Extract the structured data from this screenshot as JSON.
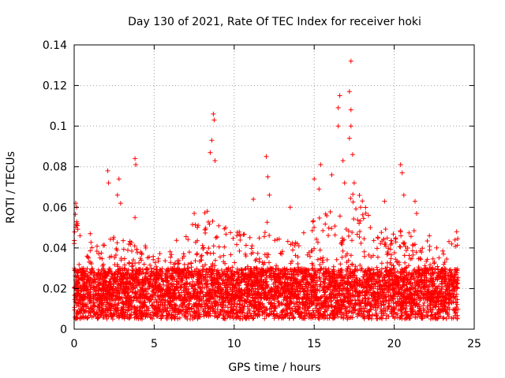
{
  "chart_data": {
    "type": "scatter",
    "title": "Day 130 of 2021, Rate Of TEC Index for receiver hoki",
    "xlabel": "GPS time / hours",
    "ylabel": "ROTI / TECUs",
    "xlim": [
      0,
      25
    ],
    "ylim": [
      0,
      0.14
    ],
    "xticks": [
      0,
      5,
      10,
      15,
      20,
      25
    ],
    "xtick_labels": [
      "0",
      "5",
      "10",
      "15",
      "20",
      "25"
    ],
    "yticks": [
      0,
      0.02,
      0.04,
      0.06,
      0.08,
      0.1,
      0.12,
      0.14
    ],
    "ytick_labels": [
      "0",
      "0.02",
      "0.04",
      "0.06",
      "0.08",
      "0.1",
      "0.12",
      "0.14"
    ],
    "grid": true,
    "marker": "+",
    "series_color": "#ff0000",
    "series": [
      {
        "name": "ROTI",
        "x_range": [
          0,
          24
        ],
        "baseline_range": [
          0.005,
          0.03
        ],
        "notable_points": [
          {
            "x": 0.1,
            "y": 0.062
          },
          {
            "x": 0.15,
            "y": 0.06
          },
          {
            "x": 0.2,
            "y": 0.052
          },
          {
            "x": 1.0,
            "y": 0.047
          },
          {
            "x": 2.1,
            "y": 0.078
          },
          {
            "x": 2.15,
            "y": 0.072
          },
          {
            "x": 2.8,
            "y": 0.074
          },
          {
            "x": 2.7,
            "y": 0.066
          },
          {
            "x": 2.9,
            "y": 0.062
          },
          {
            "x": 3.8,
            "y": 0.084
          },
          {
            "x": 3.85,
            "y": 0.081
          },
          {
            "x": 3.8,
            "y": 0.055
          },
          {
            "x": 7.5,
            "y": 0.057
          },
          {
            "x": 8.5,
            "y": 0.087
          },
          {
            "x": 8.7,
            "y": 0.106
          },
          {
            "x": 8.75,
            "y": 0.103
          },
          {
            "x": 8.6,
            "y": 0.093
          },
          {
            "x": 8.8,
            "y": 0.083
          },
          {
            "x": 11.2,
            "y": 0.064
          },
          {
            "x": 12.0,
            "y": 0.085
          },
          {
            "x": 12.1,
            "y": 0.075
          },
          {
            "x": 12.2,
            "y": 0.066
          },
          {
            "x": 13.5,
            "y": 0.06
          },
          {
            "x": 15.0,
            "y": 0.074
          },
          {
            "x": 15.4,
            "y": 0.081
          },
          {
            "x": 15.3,
            "y": 0.069
          },
          {
            "x": 16.1,
            "y": 0.076
          },
          {
            "x": 16.5,
            "y": 0.109
          },
          {
            "x": 16.6,
            "y": 0.115
          },
          {
            "x": 16.5,
            "y": 0.1
          },
          {
            "x": 16.8,
            "y": 0.083
          },
          {
            "x": 16.9,
            "y": 0.072
          },
          {
            "x": 17.3,
            "y": 0.132
          },
          {
            "x": 17.2,
            "y": 0.117
          },
          {
            "x": 17.3,
            "y": 0.108
          },
          {
            "x": 17.3,
            "y": 0.1
          },
          {
            "x": 17.2,
            "y": 0.094
          },
          {
            "x": 17.4,
            "y": 0.086
          },
          {
            "x": 17.5,
            "y": 0.072
          },
          {
            "x": 17.9,
            "y": 0.06
          },
          {
            "x": 19.4,
            "y": 0.063
          },
          {
            "x": 20.4,
            "y": 0.081
          },
          {
            "x": 20.5,
            "y": 0.077
          },
          {
            "x": 20.6,
            "y": 0.066
          },
          {
            "x": 21.3,
            "y": 0.063
          },
          {
            "x": 21.4,
            "y": 0.057
          },
          {
            "x": 22.2,
            "y": 0.046
          },
          {
            "x": 23.9,
            "y": 0.048
          }
        ]
      }
    ]
  }
}
